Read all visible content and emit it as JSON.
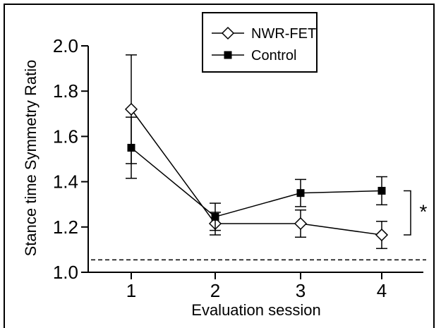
{
  "chart_data": {
    "type": "line",
    "xlabel": "Evaluation session",
    "ylabel": "Stance time Symmetry Ratio",
    "categories": [
      1,
      2,
      3,
      4
    ],
    "x_tick_labels": [
      "1",
      "2",
      "3",
      "4"
    ],
    "ylim": [
      1.0,
      2.0
    ],
    "y_ticks": [
      1.0,
      1.2,
      1.4,
      1.6,
      1.8,
      2.0
    ],
    "y_tick_labels": [
      "1.0",
      "1.2",
      "1.4",
      "1.6",
      "1.8",
      "2.0"
    ],
    "reference_line": {
      "y": 1.055,
      "style": "dashed"
    },
    "annotation": {
      "text": "*",
      "between_sessions": [
        4,
        4
      ]
    },
    "legend_position": "top",
    "series": [
      {
        "name": "NWR-FET",
        "marker": "open-diamond",
        "values": [
          1.72,
          1.215,
          1.215,
          1.165
        ],
        "errors": [
          0.24,
          0.05,
          0.06,
          0.06
        ]
      },
      {
        "name": "Control",
        "marker": "filled-square",
        "values": [
          1.55,
          1.245,
          1.35,
          1.36
        ],
        "errors": [
          0.135,
          0.06,
          0.06,
          0.062
        ]
      }
    ]
  }
}
